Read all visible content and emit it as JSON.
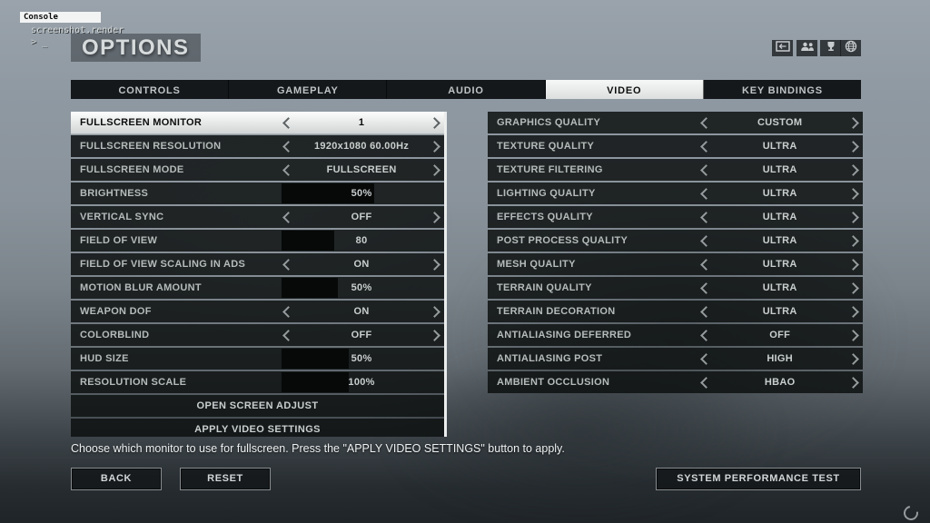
{
  "console": {
    "title": "Console",
    "command": "screenshot.render",
    "prompt": "> _"
  },
  "header": {
    "title": "OPTIONS",
    "icons": [
      {
        "name": "window-arrow-icon"
      },
      {
        "name": "friends-icon"
      },
      {
        "name": "trophy-icon"
      },
      {
        "name": "globe-icon"
      }
    ]
  },
  "tabs": [
    {
      "label": "CONTROLS",
      "active": false
    },
    {
      "label": "GAMEPLAY",
      "active": false
    },
    {
      "label": "AUDIO",
      "active": false
    },
    {
      "label": "VIDEO",
      "active": true
    },
    {
      "label": "KEY BINDINGS",
      "active": false
    }
  ],
  "left_panel": {
    "rows": [
      {
        "label": "FULLSCREEN MONITOR",
        "type": "choice",
        "value": "1",
        "selected": true
      },
      {
        "label": "FULLSCREEN RESOLUTION",
        "type": "choice",
        "value": "1920x1080 60.00Hz"
      },
      {
        "label": "FULLSCREEN MODE",
        "type": "choice",
        "value": "FULLSCREEN"
      },
      {
        "label": "BRIGHTNESS",
        "type": "slider",
        "value": "50%",
        "fill_pct": 58
      },
      {
        "label": "VERTICAL SYNC",
        "type": "choice",
        "value": "OFF"
      },
      {
        "label": "FIELD OF VIEW",
        "type": "slider",
        "value": "80",
        "fill_pct": 33
      },
      {
        "label": "FIELD OF VIEW SCALING IN ADS",
        "type": "choice",
        "value": "ON"
      },
      {
        "label": "MOTION BLUR AMOUNT",
        "type": "slider",
        "value": "50%",
        "fill_pct": 35
      },
      {
        "label": "WEAPON DOF",
        "type": "choice",
        "value": "ON"
      },
      {
        "label": "COLORBLIND",
        "type": "choice",
        "value": "OFF"
      },
      {
        "label": "HUD SIZE",
        "type": "slider",
        "value": "50%",
        "fill_pct": 42
      },
      {
        "label": "RESOLUTION SCALE",
        "type": "slider",
        "value": "100%",
        "fill_pct": 42
      },
      {
        "label": "OPEN SCREEN ADJUST",
        "type": "action"
      },
      {
        "label": "APPLY VIDEO SETTINGS",
        "type": "action"
      }
    ]
  },
  "right_panel": {
    "rows": [
      {
        "label": "GRAPHICS QUALITY",
        "type": "choice",
        "value": "CUSTOM"
      },
      {
        "label": "TEXTURE QUALITY",
        "type": "choice",
        "value": "ULTRA"
      },
      {
        "label": "TEXTURE FILTERING",
        "type": "choice",
        "value": "ULTRA"
      },
      {
        "label": "LIGHTING QUALITY",
        "type": "choice",
        "value": "ULTRA"
      },
      {
        "label": "EFFECTS QUALITY",
        "type": "choice",
        "value": "ULTRA"
      },
      {
        "label": "POST PROCESS QUALITY",
        "type": "choice",
        "value": "ULTRA"
      },
      {
        "label": "MESH QUALITY",
        "type": "choice",
        "value": "ULTRA"
      },
      {
        "label": "TERRAIN QUALITY",
        "type": "choice",
        "value": "ULTRA"
      },
      {
        "label": "TERRAIN DECORATION",
        "type": "choice",
        "value": "ULTRA"
      },
      {
        "label": "ANTIALIASING DEFERRED",
        "type": "choice",
        "value": "OFF"
      },
      {
        "label": "ANTIALIASING POST",
        "type": "choice",
        "value": "HIGH"
      },
      {
        "label": "AMBIENT OCCLUSION",
        "type": "choice",
        "value": "HBAO"
      }
    ]
  },
  "footer": {
    "description": "Choose which monitor to use for fullscreen. Press the \"APPLY VIDEO SETTINGS\" button to apply.",
    "back_label": "BACK",
    "reset_label": "RESET",
    "performance_test_label": "SYSTEM PERFORMANCE TEST"
  },
  "colors": {
    "active_tab_bg": "#e9ebeb",
    "row_bg": "#101314",
    "selected_row_bg": "#f2f3f3",
    "slider_fill": "#070909",
    "scrollbar": "#eceeee",
    "text": "#b5bbbb"
  }
}
